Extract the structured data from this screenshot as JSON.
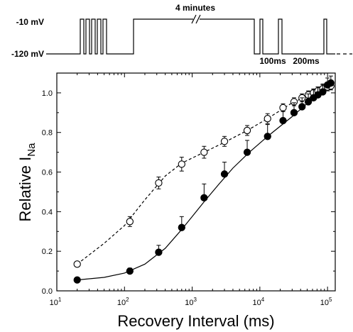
{
  "protocol": {
    "label_top": "-10 mV",
    "label_bottom": "-120 mV",
    "duration_label": "4 minutes",
    "interval_label_1": "100ms",
    "interval_label_2": "200ms"
  },
  "chart_data": {
    "type": "scatter",
    "xscale": "log",
    "xlim": [
      10,
      130000
    ],
    "ylim": [
      0.0,
      1.1
    ],
    "xlabel": "Recovery Interval (ms)",
    "ylabel_main": "Relative I",
    "ylabel_sub": "Na",
    "x_ticks": [
      {
        "value": 10,
        "base": "10",
        "exp": "1"
      },
      {
        "value": 100,
        "base": "10",
        "exp": "2"
      },
      {
        "value": 1000,
        "base": "10",
        "exp": "3"
      },
      {
        "value": 10000,
        "base": "10",
        "exp": "4"
      },
      {
        "value": 100000,
        "base": "10",
        "exp": "5"
      }
    ],
    "y_ticks": [
      "0.0",
      "0.2",
      "0.4",
      "0.6",
      "0.8",
      "1.0"
    ],
    "series": [
      {
        "marker": "open-circle",
        "fit_line": "dashed",
        "points": [
          {
            "x": 20,
            "y": 0.135,
            "err": 0.01
          },
          {
            "x": 120,
            "y": 0.35,
            "err": 0.025
          },
          {
            "x": 320,
            "y": 0.545,
            "err": 0.03
          },
          {
            "x": 700,
            "y": 0.64,
            "err": 0.035
          },
          {
            "x": 1500,
            "y": 0.7,
            "err": 0.03
          },
          {
            "x": 3000,
            "y": 0.755,
            "err": 0.025
          },
          {
            "x": 6500,
            "y": 0.81,
            "err": 0.025
          },
          {
            "x": 13000,
            "y": 0.87,
            "err": 0.025
          },
          {
            "x": 22000,
            "y": 0.925,
            "err": 0.02
          },
          {
            "x": 32000,
            "y": 0.955,
            "err": 0.02
          },
          {
            "x": 42000,
            "y": 0.975,
            "err": 0.02
          },
          {
            "x": 52000,
            "y": 0.99,
            "err": 0.02
          },
          {
            "x": 62000,
            "y": 1.0,
            "err": 0.02
          },
          {
            "x": 72000,
            "y": 1.01,
            "err": 0.02
          },
          {
            "x": 85000,
            "y": 1.02,
            "err": 0.02
          },
          {
            "x": 100000,
            "y": 1.03,
            "err": 0.02
          },
          {
            "x": 112000,
            "y": 1.035,
            "err": 0.02
          }
        ],
        "fit": [
          [
            20,
            0.135
          ],
          [
            50,
            0.24
          ],
          [
            100,
            0.33
          ],
          [
            200,
            0.46
          ],
          [
            400,
            0.58
          ],
          [
            700,
            0.645
          ],
          [
            1500,
            0.7
          ],
          [
            3000,
            0.75
          ],
          [
            6500,
            0.81
          ],
          [
            13000,
            0.87
          ],
          [
            30000,
            0.95
          ],
          [
            60000,
            0.995
          ],
          [
            115000,
            1.035
          ]
        ]
      },
      {
        "marker": "filled-circle",
        "fit_line": "solid",
        "points": [
          {
            "x": 20,
            "y": 0.055,
            "err": 0.0
          },
          {
            "x": 120,
            "y": 0.1,
            "err": 0.015
          },
          {
            "x": 320,
            "y": 0.195,
            "err": 0.035
          },
          {
            "x": 700,
            "y": 0.32,
            "err": 0.055
          },
          {
            "x": 1500,
            "y": 0.47,
            "err": 0.07
          },
          {
            "x": 3000,
            "y": 0.59,
            "err": 0.06
          },
          {
            "x": 6500,
            "y": 0.7,
            "err": 0.06
          },
          {
            "x": 13000,
            "y": 0.78,
            "err": 0.06
          },
          {
            "x": 22000,
            "y": 0.86,
            "err": 0.05
          },
          {
            "x": 32000,
            "y": 0.9,
            "err": 0.05
          },
          {
            "x": 42000,
            "y": 0.93,
            "err": 0.045
          },
          {
            "x": 52000,
            "y": 0.955,
            "err": 0.04
          },
          {
            "x": 62000,
            "y": 0.975,
            "err": 0.04
          },
          {
            "x": 72000,
            "y": 0.99,
            "err": 0.04
          },
          {
            "x": 85000,
            "y": 1.005,
            "err": 0.04
          },
          {
            "x": 100000,
            "y": 1.04,
            "err": 0.035
          },
          {
            "x": 112000,
            "y": 1.05,
            "err": 0.035
          }
        ],
        "fit": [
          [
            20,
            0.055
          ],
          [
            50,
            0.068
          ],
          [
            100,
            0.09
          ],
          [
            200,
            0.135
          ],
          [
            400,
            0.215
          ],
          [
            700,
            0.31
          ],
          [
            1000,
            0.375
          ],
          [
            1500,
            0.45
          ],
          [
            2500,
            0.54
          ],
          [
            4000,
            0.62
          ],
          [
            7000,
            0.7
          ],
          [
            13000,
            0.78
          ],
          [
            30000,
            0.88
          ],
          [
            60000,
            0.97
          ],
          [
            115000,
            1.05
          ]
        ]
      }
    ]
  }
}
